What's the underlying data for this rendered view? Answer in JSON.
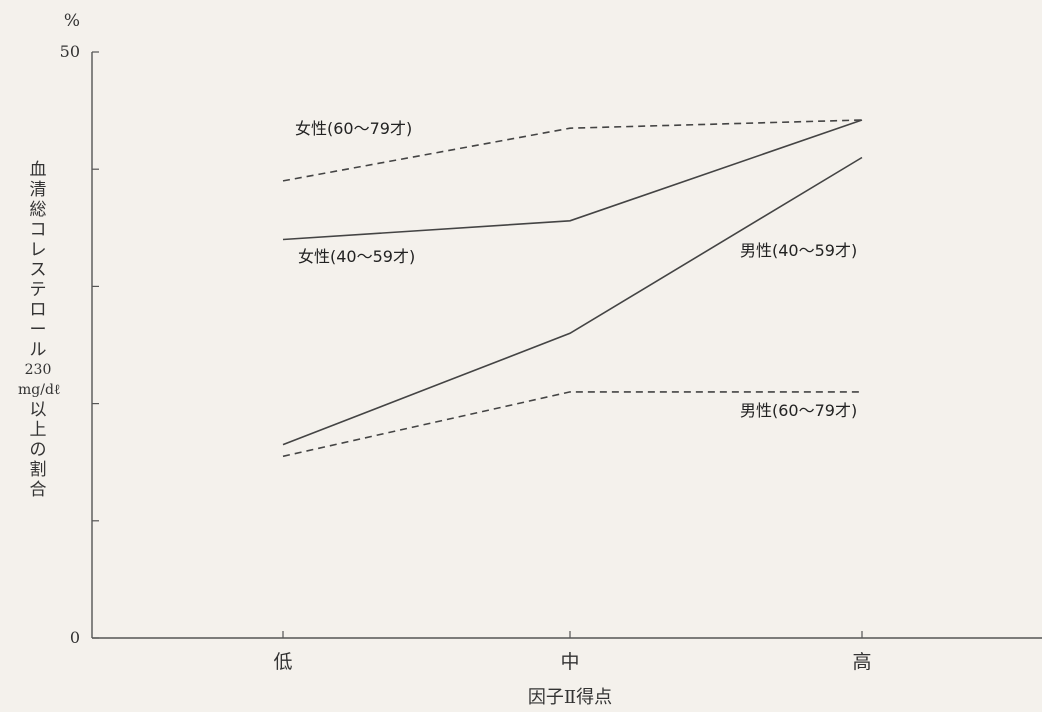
{
  "chart_data": {
    "type": "line",
    "categories": [
      "低",
      "中",
      "高"
    ],
    "xlabel": "因子Ⅱ得点",
    "ylabel_lines": [
      "血",
      "清",
      "総",
      "コ",
      "レ",
      "ス",
      "テ",
      "ロ",
      "ー",
      "ル",
      "230",
      "mg/dℓ",
      "以",
      "上",
      "の",
      "割",
      "合"
    ],
    "yunit": "%",
    "ylim": [
      0,
      50
    ],
    "yticks": [
      0,
      50
    ],
    "series": [
      {
        "name": "女性(60〜79才)",
        "style": "dashed",
        "values": [
          39,
          43.5,
          44.2
        ]
      },
      {
        "name": "女性(40〜59才)",
        "style": "solid",
        "values": [
          34,
          35.6,
          44.2
        ]
      },
      {
        "name": "男性(40〜59才)",
        "style": "solid",
        "values": [
          16.5,
          26,
          41
        ]
      },
      {
        "name": "男性(60〜79才)",
        "style": "dashed",
        "values": [
          15.5,
          21,
          21
        ]
      }
    ]
  },
  "colors": {
    "line": "#444444",
    "axis": "#555555",
    "background": "#f4f1ec"
  }
}
